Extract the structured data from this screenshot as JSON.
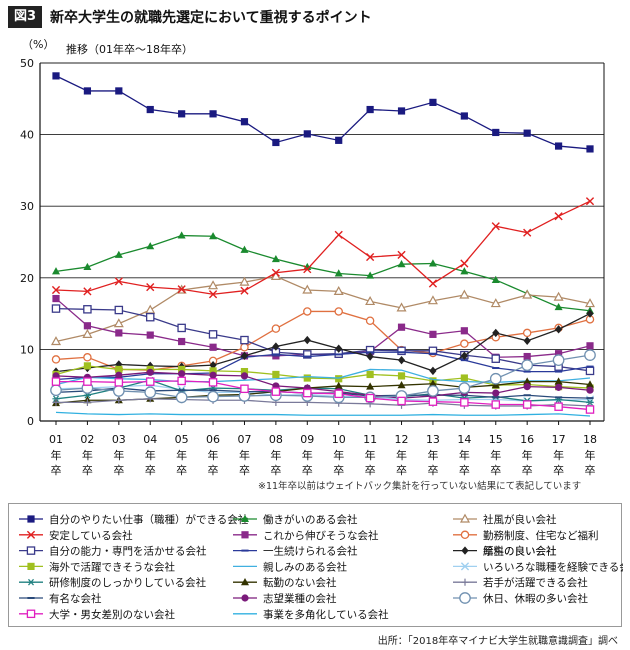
{
  "figure": {
    "badge": "図3",
    "title": "新卒大学生の就職先選定において重視するポイント"
  },
  "note": "※11年卒以前はウェイトバック集計を行っていない結果にて表記しています",
  "source": "出所：「2018年卒マイナビ大学生就職意識調査」調べ",
  "chart_data": {
    "type": "line",
    "unit_label": "（%）",
    "subtitle": "推移（01年卒～18年卒）",
    "x": [
      "01",
      "02",
      "03",
      "04",
      "05",
      "06",
      "07",
      "08",
      "09",
      "10",
      "11",
      "12",
      "13",
      "14",
      "15",
      "16",
      "17",
      "18"
    ],
    "x_suffix": [
      "年",
      "卒"
    ],
    "ylim": [
      0,
      50
    ],
    "yticks": [
      0,
      10,
      20,
      30,
      40,
      50
    ],
    "grid": "horizontal",
    "legend_position": "bottom",
    "series": [
      {
        "name": "自分のやりたい仕事（職種）ができる会社",
        "color": "#1a1a80",
        "marker": "square-filled",
        "values": [
          48.2,
          46.1,
          46.1,
          43.5,
          42.9,
          42.9,
          41.8,
          38.9,
          40.1,
          39.2,
          43.5,
          43.3,
          44.5,
          42.6,
          40.3,
          40.2,
          38.4,
          38.0
        ]
      },
      {
        "name": "働きがいのある会社",
        "color": "#1a8a2e",
        "marker": "triangle-filled",
        "values": [
          20.9,
          21.5,
          23.2,
          24.4,
          25.9,
          25.8,
          23.9,
          22.6,
          21.5,
          20.6,
          20.3,
          21.9,
          22.0,
          20.9,
          19.7,
          17.8,
          15.9,
          15.4
        ]
      },
      {
        "name": "社風が良い会社",
        "color": "#b08a66",
        "marker": "triangle-open",
        "values": [
          11.1,
          12.1,
          13.6,
          15.5,
          18.3,
          18.9,
          19.4,
          20.2,
          18.3,
          18.1,
          16.7,
          15.8,
          16.8,
          17.6,
          16.4,
          17.6,
          17.3,
          16.4
        ]
      },
      {
        "name": "安定している会社",
        "color": "#e02020",
        "marker": "x",
        "values": [
          18.3,
          18.1,
          19.5,
          18.7,
          18.4,
          17.7,
          18.2,
          20.7,
          21.2,
          26.0,
          22.9,
          23.2,
          19.2,
          22.0,
          27.2,
          26.3,
          28.6,
          30.7
        ]
      },
      {
        "name": "これから伸びそうな会社",
        "color": "#8a2a8a",
        "marker": "square-filled",
        "values": [
          17.1,
          13.3,
          12.3,
          12.0,
          11.1,
          10.3,
          9.1,
          9.1,
          9.3,
          9.3,
          9.7,
          13.1,
          12.1,
          12.6,
          8.9,
          9.0,
          9.4,
          10.5
        ]
      },
      {
        "name": "勤務制度、住宅など福利厚生の良い会社",
        "color": "#e07040",
        "marker": "circle-open",
        "values": [
          8.6,
          8.9,
          7.2,
          7.1,
          7.7,
          8.4,
          10.3,
          12.9,
          15.3,
          15.3,
          14.0,
          9.9,
          9.5,
          10.8,
          11.7,
          12.3,
          13.0,
          14.2
        ]
      },
      {
        "name": "自分の能力・専門を活かせる会社",
        "color": "#3a3a8a",
        "marker": "square-open",
        "values": [
          15.7,
          15.6,
          15.5,
          14.5,
          13.0,
          12.1,
          11.3,
          9.6,
          9.3,
          9.4,
          9.9,
          9.8,
          9.8,
          9.2,
          8.7,
          7.8,
          7.6,
          7.0
        ]
      },
      {
        "name": "一生続けられる会社",
        "color": "#2a3a9a",
        "marker": "dash",
        "values": [
          5.8,
          6.1,
          6.1,
          6.6,
          6.6,
          6.7,
          8.9,
          9.3,
          9.0,
          9.3,
          9.6,
          9.6,
          9.4,
          8.5,
          7.4,
          6.9,
          6.9,
          7.6
        ]
      },
      {
        "name": "給料の良い会社",
        "color": "#222222",
        "marker": "diamond-filled",
        "values": [
          6.9,
          7.4,
          7.9,
          7.7,
          7.6,
          7.8,
          9.1,
          10.4,
          11.3,
          10.1,
          9.0,
          8.5,
          7.0,
          9.1,
          12.3,
          11.2,
          12.8,
          15.0
        ]
      },
      {
        "name": "海外で活躍できそうな会社",
        "color": "#a0c020",
        "marker": "square-filled",
        "values": [
          6.5,
          7.7,
          7.2,
          7.2,
          7.2,
          7.0,
          6.9,
          6.5,
          6.0,
          5.9,
          6.5,
          6.3,
          5.6,
          6.0,
          5.0,
          5.1,
          4.8,
          4.6
        ]
      },
      {
        "name": "親しみのある会社",
        "color": "#40b0e0",
        "marker": "none",
        "values": [
          5.1,
          6.1,
          5.9,
          5.8,
          5.5,
          5.5,
          5.7,
          5.9,
          6.2,
          6.0,
          7.2,
          7.1,
          5.8,
          5.5,
          5.4,
          5.6,
          5.6,
          6.0
        ]
      },
      {
        "name": "いろいろな職種を経験できる会社",
        "color": "#a0d0f0",
        "marker": "x",
        "values": [
          4.5,
          4.6,
          4.8,
          5.0,
          4.4,
          4.0,
          4.0,
          3.6,
          3.7,
          3.4,
          3.4,
          3.0,
          2.9,
          3.0,
          3.0,
          2.8,
          2.9,
          3.0
        ]
      },
      {
        "name": "研修制度のしっかりしている会社",
        "color": "#208080",
        "marker": "asterisk",
        "values": [
          3.1,
          3.6,
          4.6,
          5.7,
          4.2,
          4.6,
          4.5,
          4.3,
          4.6,
          4.5,
          3.6,
          3.4,
          3.8,
          3.2,
          3.4,
          2.8,
          3.0,
          2.6
        ]
      },
      {
        "name": "転勤のない会社",
        "color": "#333300",
        "marker": "triangle-filled",
        "values": [
          2.5,
          2.9,
          2.9,
          3.1,
          3.3,
          3.6,
          3.7,
          4.1,
          4.6,
          4.9,
          4.8,
          5.0,
          5.2,
          4.7,
          5.0,
          5.5,
          5.5,
          5.1
        ]
      },
      {
        "name": "若手が活躍できる会社",
        "color": "#7a7a9a",
        "marker": "plus",
        "values": [
          2.6,
          2.6,
          2.9,
          3.1,
          3.0,
          2.9,
          2.9,
          2.6,
          2.6,
          2.5,
          2.4,
          2.2,
          2.5,
          2.2,
          2.1,
          2.1,
          2.3,
          2.1
        ]
      },
      {
        "name": "有名な会社",
        "color": "#2a4a7a",
        "marker": "dash",
        "values": [
          4.0,
          4.2,
          4.6,
          4.2,
          4.3,
          4.3,
          4.1,
          4.1,
          3.9,
          3.9,
          3.5,
          3.6,
          3.6,
          3.6,
          3.3,
          3.6,
          3.3,
          3.2
        ]
      },
      {
        "name": "志望業種の会社",
        "color": "#7a1a7a",
        "marker": "circle-filled",
        "values": [
          6.3,
          6.1,
          6.4,
          6.8,
          6.6,
          6.4,
          6.3,
          4.9,
          4.6,
          4.1,
          3.6,
          3.2,
          3.5,
          4.0,
          3.9,
          4.8,
          4.7,
          4.3
        ]
      },
      {
        "name": "休日、休暇の多い会社",
        "color": "#7090b0",
        "marker": "circle-open-large",
        "values": [
          4.3,
          4.6,
          4.2,
          4.0,
          3.3,
          3.4,
          3.5,
          3.6,
          3.5,
          3.3,
          3.3,
          3.5,
          4.2,
          4.6,
          5.9,
          7.8,
          8.5,
          9.2
        ]
      },
      {
        "name": "大学・男女差別のない会社",
        "color": "#e020c0",
        "marker": "square-open",
        "values": [
          5.5,
          5.5,
          5.4,
          5.5,
          5.6,
          5.4,
          4.5,
          4.1,
          3.9,
          3.8,
          3.2,
          2.8,
          2.7,
          2.6,
          2.3,
          2.3,
          2.0,
          1.6
        ]
      },
      {
        "name": "事業を多角化している会社",
        "color": "#30b0e0",
        "marker": "none",
        "values": [
          1.2,
          1.0,
          0.9,
          1.0,
          0.9,
          0.9,
          0.9,
          0.9,
          0.8,
          0.8,
          0.8,
          0.8,
          0.9,
          0.8,
          0.8,
          0.9,
          1.0,
          0.7
        ]
      }
    ]
  }
}
